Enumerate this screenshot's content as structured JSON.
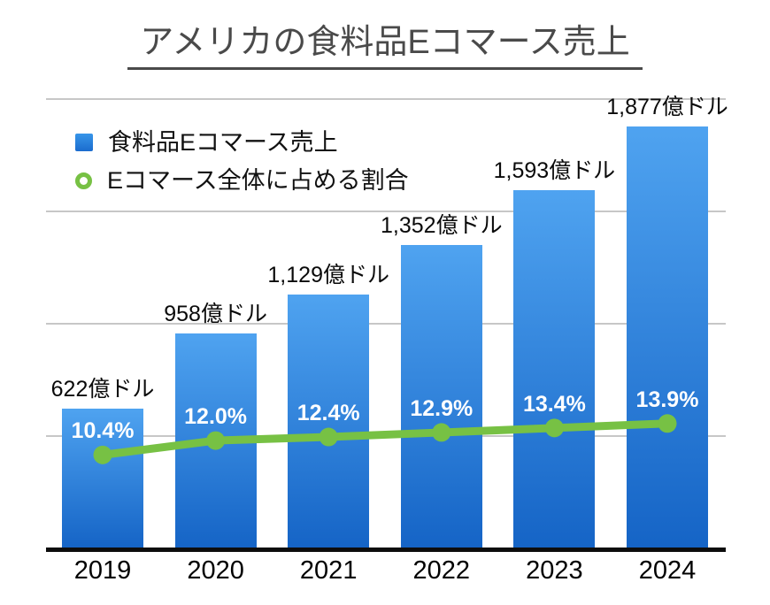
{
  "title": "アメリカの食料品Eコマース売上",
  "legend": {
    "bar_label": "食料品Eコマース売上",
    "line_label": "Eコマース全体に占める割合"
  },
  "colors": {
    "bar_gradient_top": "#4fa3f0",
    "bar_gradient_bottom": "#1564c6",
    "line": "#77c144",
    "grid": "#c7c7c7",
    "axis": "#0d0d0d",
    "title": "#4a4a4a",
    "value_label": "#0a0a0a",
    "pct_label": "#ffffff",
    "x_label": "#000000"
  },
  "chart_data": {
    "type": "bar",
    "subtype": "bar-with-secondary-line",
    "title": "アメリカの食料品Eコマース売上",
    "categories": [
      "2019",
      "2020",
      "2021",
      "2022",
      "2023",
      "2024"
    ],
    "series": [
      {
        "name": "食料品Eコマース売上",
        "type": "bar",
        "axis": "left",
        "unit": "億ドル",
        "values": [
          622,
          958,
          1129,
          1352,
          1593,
          1877
        ],
        "labels": [
          "622億ドル",
          "958億ドル",
          "1,129億ドル",
          "1,352億ドル",
          "1,593億ドル",
          "1,877億ドル"
        ],
        "ylim": [
          0,
          2000
        ]
      },
      {
        "name": "Eコマース全体に占める割合",
        "type": "line",
        "axis": "right",
        "unit": "%",
        "values": [
          10.4,
          12.0,
          12.4,
          12.9,
          13.4,
          13.9
        ],
        "labels": [
          "10.4%",
          "12.0%",
          "12.4%",
          "12.9%",
          "13.4%",
          "13.9%"
        ],
        "ylim": [
          0,
          50
        ]
      }
    ],
    "gridline_values": [
      500,
      1000,
      1500,
      2000
    ],
    "grid": "horizontal-only",
    "y_axis_tick_labels_visible": false,
    "legend_position": "top-left",
    "xlabel": "",
    "ylabel": ""
  }
}
